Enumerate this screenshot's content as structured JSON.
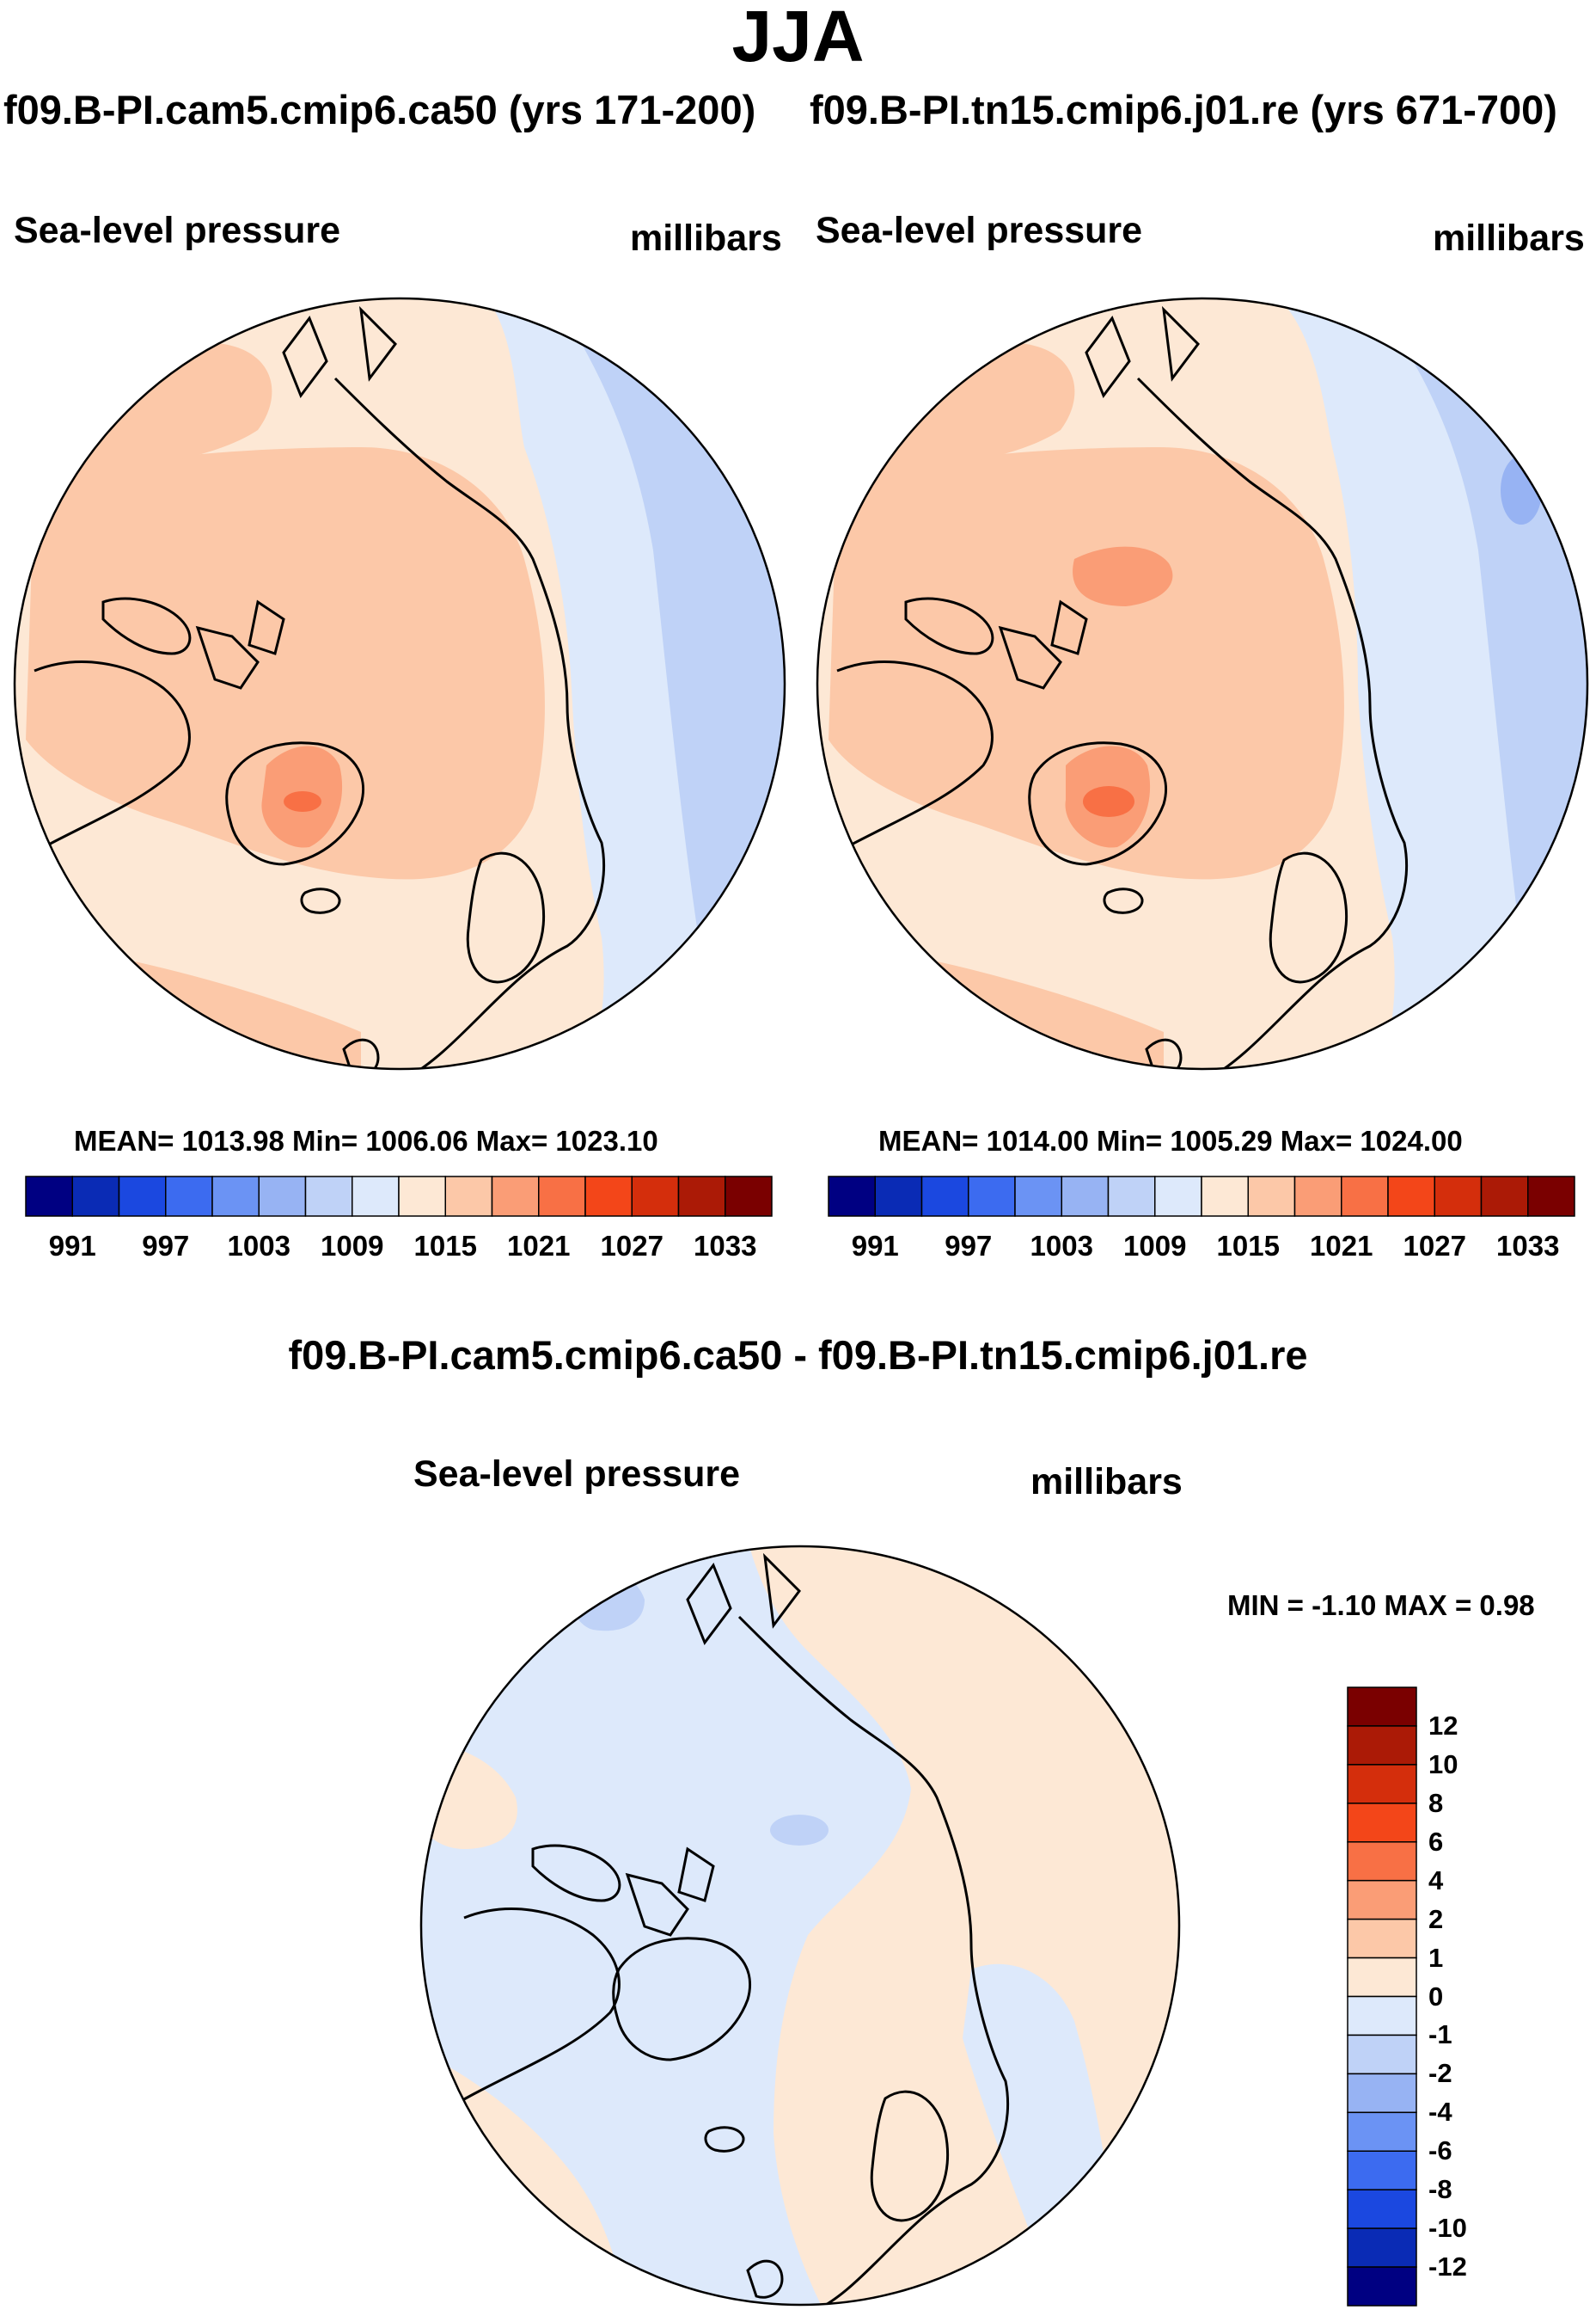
{
  "header": {
    "season": "JJA",
    "run_a_title": "f09.B-PI.cam5.cmip6.ca50 (yrs 171-200)",
    "run_b_title": "f09.B-PI.tn15.cmip6.j01.re (yrs 671-700)",
    "difference_title": "f09.B-PI.cam5.cmip6.ca50 - f09.B-PI.tn15.cmip6.j01.re"
  },
  "chart_data": [
    {
      "type": "heatmap",
      "projection": "north-polar-stereographic",
      "variable": "Sea-level pressure",
      "units": "millibars",
      "run": "f09.B-PI.cam5.cmip6.ca50 (yrs 171-200)",
      "stats_text": "MEAN= 1013.98  Min= 1006.06  Max= 1023.10",
      "mean": 1013.98,
      "min": 1006.06,
      "max": 1023.1,
      "levels": [
        991,
        994,
        997,
        1000,
        1003,
        1006,
        1009,
        1012,
        1015,
        1018,
        1021,
        1024,
        1027,
        1030,
        1033
      ],
      "level_labels": [
        "991",
        "997",
        "1003",
        "1009",
        "1015",
        "1021",
        "1027",
        "1033"
      ],
      "colors": [
        "#000082",
        "#0a2bb5",
        "#1b48e0",
        "#3c6bf0",
        "#6b93f4",
        "#97b3f3",
        "#bfd2f7",
        "#dde9fb",
        "#fde8d5",
        "#fcc8a8",
        "#fa9d76",
        "#f87045",
        "#f34619",
        "#d42e0c",
        "#ab1a06",
        "#7a0000"
      ]
    },
    {
      "type": "heatmap",
      "projection": "north-polar-stereographic",
      "variable": "Sea-level pressure",
      "units": "millibars",
      "run": "f09.B-PI.tn15.cmip6.j01.re (yrs 671-700)",
      "stats_text": "MEAN= 1014.00  Min= 1005.29  Max= 1024.00",
      "mean": 1014.0,
      "min": 1005.29,
      "max": 1024.0,
      "levels": [
        991,
        994,
        997,
        1000,
        1003,
        1006,
        1009,
        1012,
        1015,
        1018,
        1021,
        1024,
        1027,
        1030,
        1033
      ],
      "level_labels": [
        "991",
        "997",
        "1003",
        "1009",
        "1015",
        "1021",
        "1027",
        "1033"
      ],
      "colors": [
        "#000082",
        "#0a2bb5",
        "#1b48e0",
        "#3c6bf0",
        "#6b93f4",
        "#97b3f3",
        "#bfd2f7",
        "#dde9fb",
        "#fde8d5",
        "#fcc8a8",
        "#fa9d76",
        "#f87045",
        "#f34619",
        "#d42e0c",
        "#ab1a06",
        "#7a0000"
      ]
    },
    {
      "type": "heatmap",
      "projection": "north-polar-stereographic",
      "variable": "Sea-level pressure",
      "units": "millibars",
      "run": "f09.B-PI.cam5.cmip6.ca50 - f09.B-PI.tn15.cmip6.j01.re",
      "stats_text": "MIN =  -1.10 MAX =   0.98",
      "min": -1.1,
      "max": 0.98,
      "levels": [
        -12,
        -10,
        -8,
        -6,
        -4,
        -2,
        -1,
        0,
        1,
        2,
        4,
        6,
        8,
        10,
        12
      ],
      "level_labels": [
        "12",
        "10",
        "8",
        "6",
        "4",
        "2",
        "1",
        "0",
        "-1",
        "-2",
        "-4",
        "-6",
        "-8",
        "-10",
        "-12"
      ],
      "colors": [
        "#7a0000",
        "#ab1a06",
        "#d42e0c",
        "#f34619",
        "#f87045",
        "#fa9d76",
        "#fcc8a8",
        "#fde8d5",
        "#dde9fb",
        "#bfd2f7",
        "#97b3f3",
        "#6b93f4",
        "#3c6bf0",
        "#1b48e0",
        "#0a2bb5",
        "#000082"
      ]
    }
  ]
}
